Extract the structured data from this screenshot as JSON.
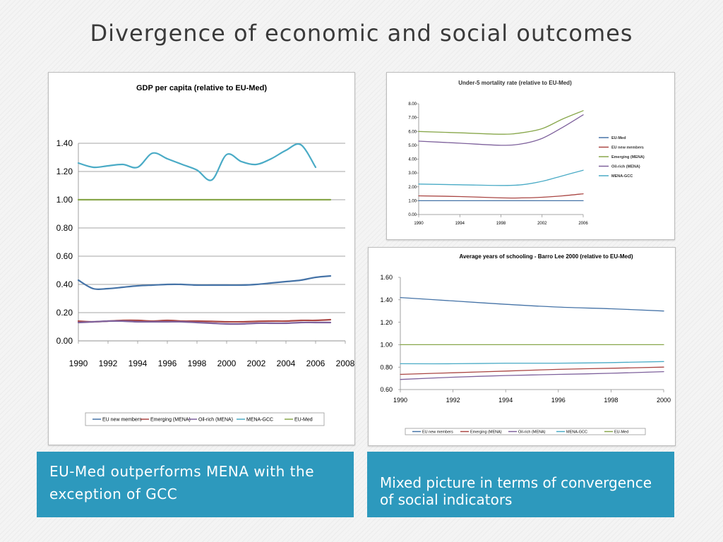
{
  "slide": {
    "title": "Divergence of economic and social outcomes",
    "box_left": "EU-Med outperforms MENA with the exception of GCC",
    "box_right": "Mixed picture in terms of convergence of social indicators"
  },
  "colors": {
    "eu_new": "#4573a7",
    "emerging": "#aa4643",
    "oil_rich": "#7e619c",
    "gcc": "#4aabc6",
    "eu_med": "#88a74b"
  },
  "chart_data": [
    {
      "id": "gdp",
      "type": "line",
      "title": "GDP per capita (relative to EU-Med)",
      "x_ticks": [
        "1990",
        "1992",
        "1994",
        "1996",
        "1998",
        "2000",
        "2002",
        "2004",
        "2006",
        "2008"
      ],
      "y_ticks": [
        "0.00",
        "0.20",
        "0.40",
        "0.60",
        "0.80",
        "1.00",
        "1.20",
        "1.40"
      ],
      "xlim": [
        1990,
        2008
      ],
      "ylim": [
        0,
        1.4
      ],
      "y_top": 1.4,
      "grid": true,
      "legend": "bottom",
      "series": [
        {
          "name": "EU new members",
          "color": "#4573a7",
          "x": [
            1990,
            1991,
            1992,
            1993,
            1994,
            1995,
            1996,
            1997,
            1998,
            1999,
            2000,
            2001,
            2002,
            2003,
            2004,
            2005,
            2006,
            2007
          ],
          "y": [
            0.43,
            0.37,
            0.37,
            0.38,
            0.39,
            0.395,
            0.4,
            0.4,
            0.395,
            0.395,
            0.395,
            0.395,
            0.4,
            0.41,
            0.42,
            0.43,
            0.45,
            0.46
          ]
        },
        {
          "name": "Emerging (MENA)",
          "color": "#aa4643",
          "x": [
            1990,
            1991,
            1992,
            1993,
            1994,
            1995,
            1996,
            1997,
            1998,
            1999,
            2000,
            2001,
            2002,
            2003,
            2004,
            2005,
            2006,
            2007
          ],
          "y": [
            0.14,
            0.135,
            0.14,
            0.145,
            0.145,
            0.14,
            0.145,
            0.14,
            0.14,
            0.138,
            0.135,
            0.135,
            0.138,
            0.14,
            0.14,
            0.145,
            0.145,
            0.15
          ]
        },
        {
          "name": "Oil-rich (MENA)",
          "color": "#7e619c",
          "x": [
            1990,
            1991,
            1992,
            1993,
            1994,
            1995,
            1996,
            1997,
            1998,
            1999,
            2000,
            2001,
            2002,
            2003,
            2004,
            2005,
            2006,
            2007
          ],
          "y": [
            0.13,
            0.135,
            0.14,
            0.14,
            0.135,
            0.135,
            0.135,
            0.135,
            0.13,
            0.125,
            0.12,
            0.12,
            0.125,
            0.125,
            0.125,
            0.13,
            0.13,
            0.13
          ]
        },
        {
          "name": "MENA-GCC",
          "color": "#4aabc6",
          "x": [
            1990,
            1991,
            1992,
            1993,
            1994,
            1995,
            1996,
            1997,
            1998,
            1999,
            2000,
            2001,
            2002,
            2003,
            2004,
            2005,
            2006
          ],
          "y": [
            1.26,
            1.23,
            1.24,
            1.25,
            1.23,
            1.33,
            1.29,
            1.25,
            1.21,
            1.14,
            1.32,
            1.27,
            1.25,
            1.29,
            1.35,
            1.39,
            1.23
          ]
        },
        {
          "name": "EU-Med",
          "color": "#88a74b",
          "x": [
            1990,
            2007
          ],
          "y": [
            1.0,
            1.0
          ]
        }
      ]
    },
    {
      "id": "mortality",
      "type": "line",
      "title": "Under-5 mortality rate (relative to EU-Med)",
      "x_ticks": [
        "1990",
        "1994",
        "1998",
        "2002",
        "2006"
      ],
      "y_ticks": [
        "0.00",
        "1.00",
        "2.00",
        "3.00",
        "4.00",
        "5.00",
        "6.00",
        "7.00",
        "8.00"
      ],
      "xlim": [
        1990,
        2006
      ],
      "ylim": [
        0,
        8
      ],
      "y_top": 8,
      "grid": false,
      "legend": "right",
      "series": [
        {
          "name": "EU-Med",
          "color": "#4573a7",
          "x": [
            1990,
            2006
          ],
          "y": [
            1.0,
            1.0
          ]
        },
        {
          "name": "EU new members",
          "color": "#aa4643",
          "x": [
            1990,
            1994,
            1998,
            2000,
            2002,
            2004,
            2006
          ],
          "y": [
            1.35,
            1.3,
            1.2,
            1.2,
            1.25,
            1.35,
            1.5
          ]
        },
        {
          "name": "Emerging (MENA)",
          "color": "#88a74b",
          "x": [
            1990,
            1994,
            1998,
            2000,
            2002,
            2004,
            2006
          ],
          "y": [
            6.0,
            5.9,
            5.8,
            5.9,
            6.2,
            6.9,
            7.5
          ]
        },
        {
          "name": "Oil-rich (MENA)",
          "color": "#7e619c",
          "x": [
            1990,
            1994,
            1998,
            2000,
            2002,
            2004,
            2006
          ],
          "y": [
            5.3,
            5.15,
            5.0,
            5.1,
            5.5,
            6.3,
            7.2
          ]
        },
        {
          "name": "MENA-GCC",
          "color": "#4aabc6",
          "x": [
            1990,
            1994,
            1998,
            2000,
            2002,
            2004,
            2006
          ],
          "y": [
            2.2,
            2.15,
            2.1,
            2.15,
            2.4,
            2.8,
            3.2
          ]
        }
      ]
    },
    {
      "id": "schooling",
      "type": "line",
      "title": "Average years of schooling - Barro Lee 2000 (relative to EU-Med)",
      "x_ticks": [
        "1990",
        "1992",
        "1994",
        "1996",
        "1998",
        "2000"
      ],
      "y_ticks": [
        "0.60",
        "0.80",
        "1.00",
        "1.20",
        "1.40",
        "1.60"
      ],
      "xlim": [
        1990,
        2000
      ],
      "ylim": [
        0.6,
        1.6
      ],
      "y_top": 1.6,
      "grid": false,
      "legend": "bottom",
      "series": [
        {
          "name": "EU new members",
          "color": "#4573a7",
          "x": [
            1990,
            1992,
            1994,
            1996,
            1998,
            2000
          ],
          "y": [
            1.42,
            1.39,
            1.36,
            1.335,
            1.32,
            1.3
          ]
        },
        {
          "name": "Emerging (MENA)",
          "color": "#aa4643",
          "x": [
            1990,
            1992,
            1994,
            1996,
            1998,
            2000
          ],
          "y": [
            0.735,
            0.75,
            0.765,
            0.78,
            0.79,
            0.8
          ]
        },
        {
          "name": "Oil-rich (MENA)",
          "color": "#7e619c",
          "x": [
            1990,
            1992,
            1994,
            1996,
            1998,
            2000
          ],
          "y": [
            0.69,
            0.71,
            0.725,
            0.735,
            0.745,
            0.76
          ]
        },
        {
          "name": "MENA-GCC",
          "color": "#4aabc6",
          "x": [
            1990,
            1992,
            1994,
            1996,
            1998,
            2000
          ],
          "y": [
            0.83,
            0.83,
            0.835,
            0.835,
            0.84,
            0.85
          ]
        },
        {
          "name": "EU-Med",
          "color": "#88a74b",
          "x": [
            1990,
            2000
          ],
          "y": [
            1.0,
            1.0
          ]
        }
      ]
    }
  ]
}
